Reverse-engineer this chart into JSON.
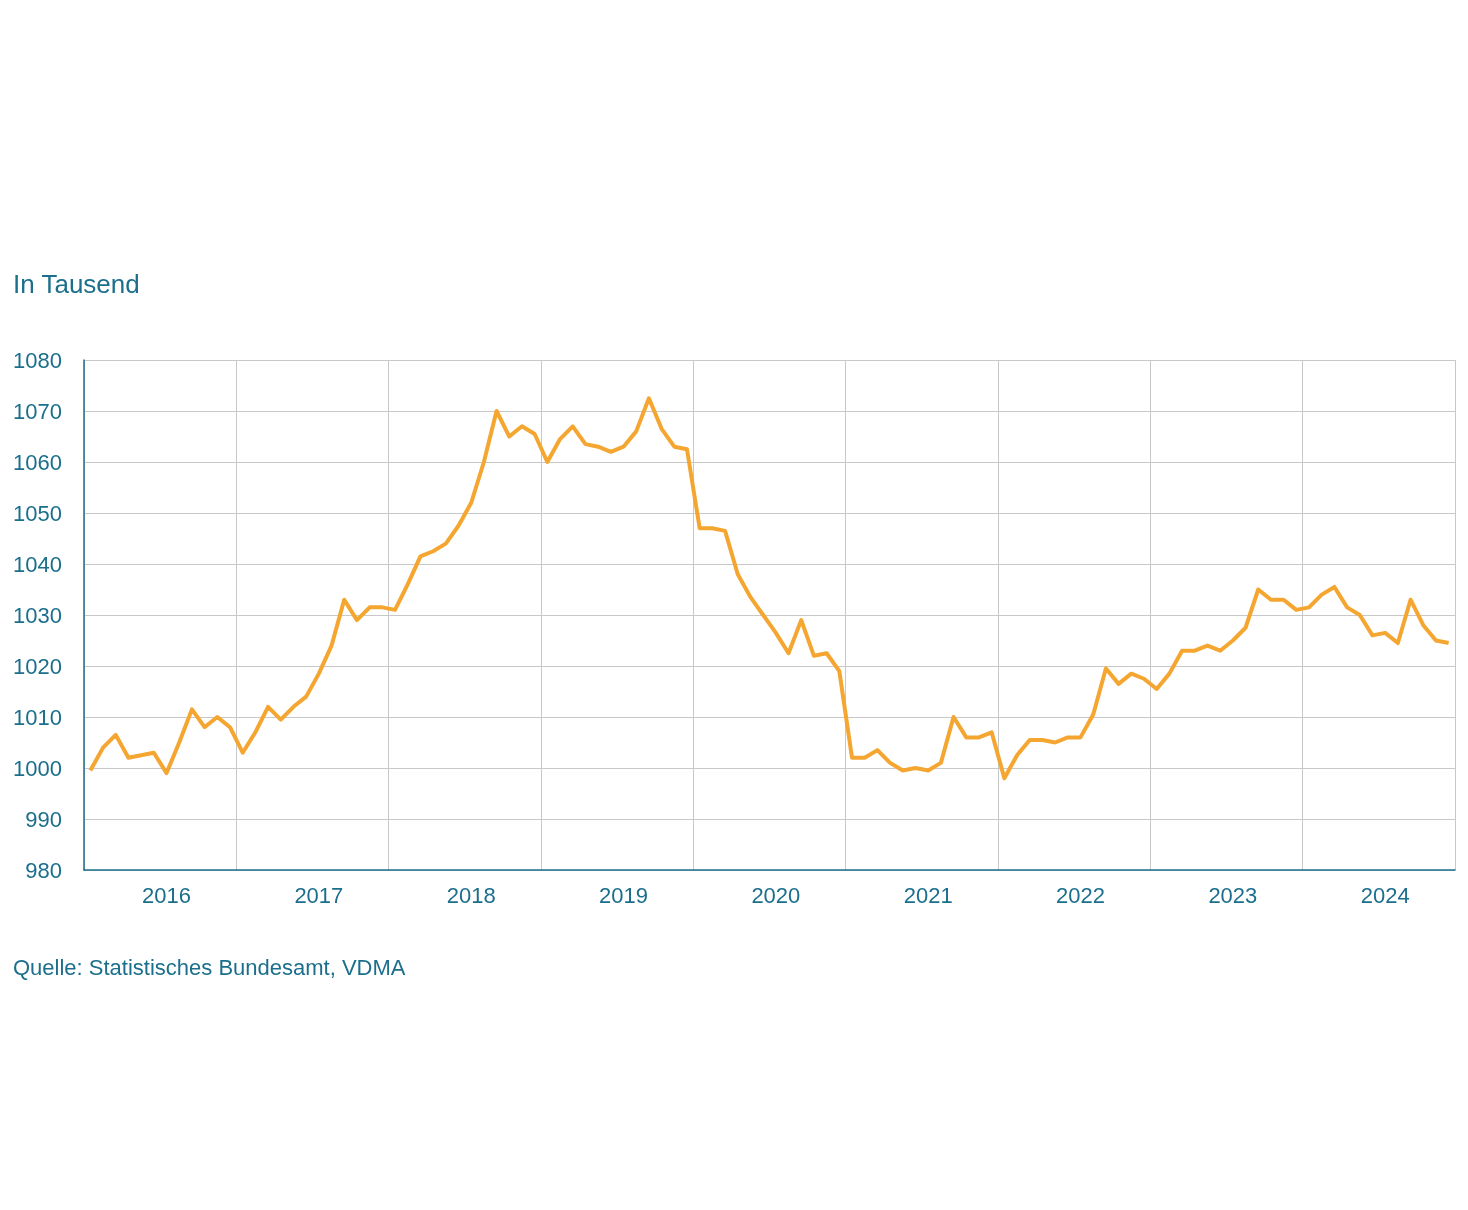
{
  "chart_data": {
    "type": "line",
    "ylabel": "In Tausend",
    "annotations": [
      "Quelle: Statistisches Bundesamt, VDMA"
    ],
    "categories": [
      null,
      null,
      null,
      null,
      null,
      null,
      "2016",
      null,
      null,
      null,
      null,
      null,
      null,
      null,
      null,
      null,
      null,
      null,
      "2017",
      null,
      null,
      null,
      null,
      null,
      null,
      null,
      null,
      null,
      null,
      null,
      "2018",
      null,
      null,
      null,
      null,
      null,
      null,
      null,
      null,
      null,
      null,
      null,
      "2019",
      null,
      null,
      null,
      null,
      null,
      null,
      null,
      null,
      null,
      null,
      null,
      "2020",
      null,
      null,
      null,
      null,
      null,
      null,
      null,
      null,
      null,
      null,
      null,
      "2021",
      null,
      null,
      null,
      null,
      null,
      null,
      null,
      null,
      null,
      null,
      null,
      "2022",
      null,
      null,
      null,
      null,
      null,
      null,
      null,
      null,
      null,
      null,
      null,
      "2023",
      null,
      null,
      null,
      null,
      null,
      null,
      null,
      null,
      null,
      null,
      null,
      "2024",
      null,
      null,
      null,
      null,
      null
    ],
    "series": [
      {
        "color": "#f5a631",
        "values": [
          999.5,
          1004,
          1006.5,
          1002,
          1002.5,
          1003,
          999,
          1005,
          1011.5,
          1008,
          1010,
          1008,
          1003,
          1007,
          1012,
          1009.5,
          1012,
          1014,
          1018.5,
          1024,
          1033,
          1029,
          1031.5,
          1031.5,
          1031,
          1036,
          1041.5,
          1042.5,
          1044,
          1047.5,
          1052,
          1060,
          1070,
          1065,
          1067,
          1065.5,
          1060,
          1064.5,
          1067,
          1063.5,
          1063,
          1062,
          1063,
          1066,
          1072.5,
          1066.5,
          1063,
          1062.5,
          1047,
          1047,
          1046.5,
          1038,
          1033.5,
          1030,
          1026.5,
          1022.5,
          1029,
          1022,
          1022.5,
          1019,
          1002,
          1002,
          1003.5,
          1001,
          999.5,
          1000,
          999.5,
          1001,
          1010,
          1006,
          1006,
          1007,
          998,
          1002.5,
          1005.5,
          1005.5,
          1005,
          1006,
          1006,
          1010.5,
          1019.5,
          1016.5,
          1018.5,
          1017.5,
          1015.5,
          1018.5,
          1023,
          1023,
          1024,
          1023,
          1025,
          1027.5,
          1035,
          1033,
          1033,
          1031,
          1031.5,
          1034,
          1035.5,
          1031.5,
          1030,
          1026,
          1026.5,
          1024.5,
          1033,
          1028,
          1025,
          1024.5
        ]
      }
    ],
    "ylim": [
      980,
      1080
    ],
    "yticks": [
      980,
      990,
      1000,
      1010,
      1020,
      1030,
      1040,
      1050,
      1060,
      1070,
      1080
    ],
    "grid": true,
    "marker": "none"
  }
}
